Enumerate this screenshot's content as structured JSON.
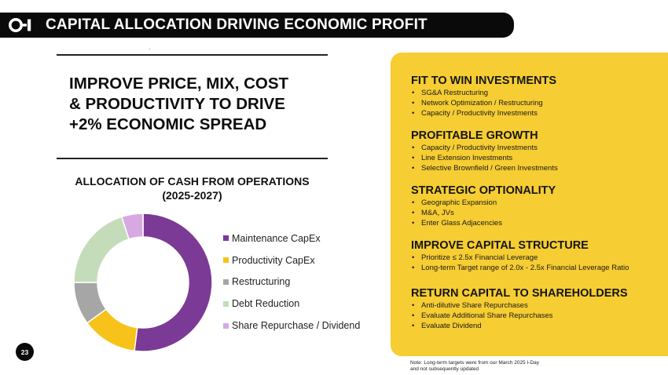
{
  "header": {
    "title": "CAPITAL ALLOCATION DRIVING ECONOMIC PROFIT",
    "logo_name": "O-I logo"
  },
  "headline": {
    "lines": [
      "IMPROVE PRICE, MIX, COST",
      "& PRODUCTIVITY TO DRIVE",
      "+2% ECONOMIC SPREAD"
    ]
  },
  "chart_data": {
    "type": "pie",
    "style": "donut",
    "title": "ALLOCATION OF CASH FROM OPERATIONS",
    "subtitle": "(2025-2027)",
    "categories": [
      "Maintenance CapEx",
      "Productivity CapEx",
      "Restructuring",
      "Debt Reduction",
      "Share Repurchase / Dividend"
    ],
    "values": [
      52,
      13,
      10,
      20,
      5
    ],
    "colors": [
      "#7b3a96",
      "#f7c21a",
      "#a6a6a6",
      "#c4dcba",
      "#d8a8e2"
    ],
    "legend_position": "right"
  },
  "panel": {
    "sections": [
      {
        "title": "FIT TO WIN INVESTMENTS",
        "bullets": [
          "SG&A Restructuring",
          "Network Optimization / Restructuring",
          "Capacity / Productivity Investments"
        ]
      },
      {
        "title": "PROFITABLE GROWTH",
        "bullets": [
          "Capacity / Productivity Investments",
          "Line Extension Investments",
          "Selective Brownfield / Green Investments"
        ]
      },
      {
        "title": "STRATEGIC OPTIONALITY",
        "bullets": [
          "Geographic Expansion",
          "M&A, JVs",
          "Enter Glass Adjacencies"
        ]
      },
      {
        "title": "IMPROVE CAPITAL STRUCTURE",
        "bullets": [
          "Prioritize  ≤ 2.5x Financial Leverage",
          "Long-term Target range of 2.0x - 2.5x Financial Leverage Ratio"
        ]
      },
      {
        "title": "RETURN CAPITAL TO SHAREHOLDERS",
        "bullets": [
          "Anti-dilutive Share Repurchases",
          "Evaluate Additional Share Repurchases",
          "Evaluate Dividend"
        ]
      }
    ]
  },
  "note": {
    "lines": [
      "Note: Long-term targets were from our March 2025 I-Day",
      "and not subsequently updated"
    ]
  },
  "page_number": "23",
  "colors": {
    "header_bg": "#0a0a0a",
    "panel_bg": "#f6cd32",
    "text": "#111111"
  }
}
